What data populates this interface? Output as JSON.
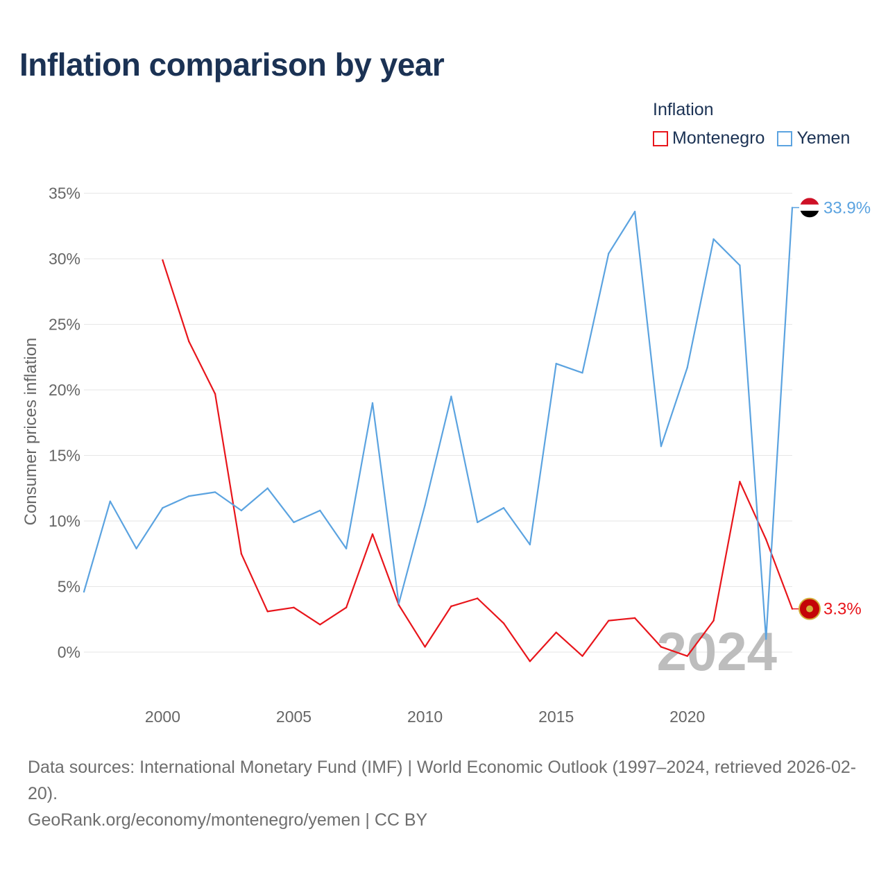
{
  "colors": {
    "montenegro": "#e8151b",
    "yemen": "#5ba3e0",
    "title": "#1b3254",
    "grid": "#e6e6e6"
  },
  "header": {
    "title": "Inflation comparison by year"
  },
  "legend": {
    "heading": "Inflation",
    "items": [
      "Montenegro",
      "Yemen"
    ]
  },
  "year_watermark": "2024",
  "end_labels": {
    "yemen": "33.9%",
    "montenegro": "3.3%"
  },
  "chart_data": {
    "type": "line",
    "title": "Inflation comparison by year",
    "xlabel": "",
    "ylabel": "Consumer prices inflation",
    "ylim": [
      -3.5,
      35
    ],
    "xlim": [
      1997,
      2024
    ],
    "yticks": [
      0,
      5,
      10,
      15,
      20,
      25,
      30,
      35
    ],
    "ytick_labels": [
      "0%",
      "5%",
      "10%",
      "15%",
      "20%",
      "25%",
      "30%",
      "35%"
    ],
    "xticks": [
      2000,
      2005,
      2010,
      2015,
      2020
    ],
    "xtick_labels": [
      "2000",
      "2005",
      "2010",
      "2015",
      "2020"
    ],
    "grid": true,
    "legend_position": "top-right",
    "x": [
      1997,
      1998,
      1999,
      2000,
      2001,
      2002,
      2003,
      2004,
      2005,
      2006,
      2007,
      2008,
      2009,
      2010,
      2011,
      2012,
      2013,
      2014,
      2015,
      2016,
      2017,
      2018,
      2019,
      2020,
      2021,
      2022,
      2023,
      2024
    ],
    "series": [
      {
        "name": "Montenegro",
        "color": "#e8151b",
        "values": [
          null,
          null,
          null,
          29.9,
          23.7,
          19.7,
          7.5,
          3.1,
          3.4,
          2.1,
          3.4,
          9.0,
          3.6,
          0.4,
          3.5,
          4.1,
          2.2,
          -0.7,
          1.5,
          -0.3,
          2.4,
          2.6,
          0.4,
          -0.3,
          2.4,
          13.0,
          8.6,
          3.3
        ]
      },
      {
        "name": "Yemen",
        "color": "#5ba3e0",
        "values": [
          4.6,
          11.5,
          7.9,
          11.0,
          11.9,
          12.2,
          10.8,
          12.5,
          9.9,
          10.8,
          7.9,
          19.0,
          3.7,
          11.2,
          19.5,
          9.9,
          11.0,
          8.2,
          22.0,
          21.3,
          30.4,
          33.6,
          15.7,
          21.7,
          31.5,
          29.5,
          1.0,
          33.9
        ]
      }
    ]
  },
  "footer": {
    "sources": "Data sources: International Monetary Fund (IMF) | World Economic Outlook (1997–2024, retrieved 2026-02-20).",
    "credit": "GeoRank.org/economy/montenegro/yemen | CC BY"
  }
}
